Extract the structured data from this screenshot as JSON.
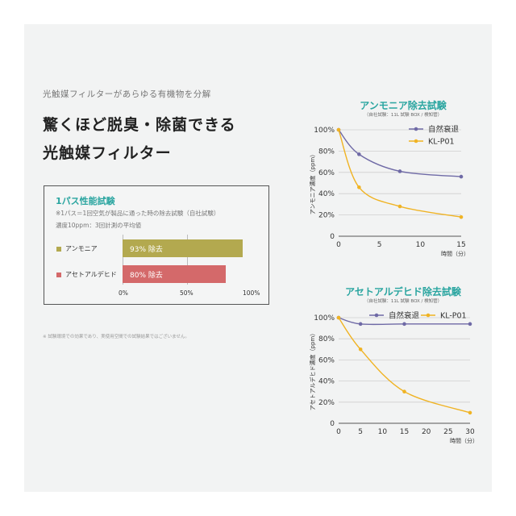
{
  "subtitle": "光触媒フィルターがあらゆる有機物を分解",
  "headline": [
    "驚くほど脱臭・除菌できる",
    "光触媒フィルター"
  ],
  "pass_test": {
    "title": "1パス性能試験",
    "note1": "※1パス＝1回空気が製品に通った時の除去試験（自社試験）",
    "note2": "濃度10ppm：3回計測の平均値",
    "bars": [
      {
        "label": "アンモニア",
        "value": 93,
        "text": "93% 除去",
        "color": "#b3a94f"
      },
      {
        "label": "アセトアルデヒド",
        "value": 80,
        "text": "80% 除去",
        "color": "#d4696a"
      }
    ],
    "ticks": [
      "0%",
      "50%",
      "100%"
    ]
  },
  "footnote": "※ 試験環境での効果であり、実使用空間での試験結果ではございません。",
  "chart_data": [
    {
      "type": "line",
      "title": "アンモニア除去試験",
      "subtitle": "（自社試験：11L 試験 BOX / 検知管）",
      "ylabel": "アンモニア濃度（ppm）",
      "xlabel": "時間（分）",
      "xlim": [
        0,
        15
      ],
      "ylim": [
        0,
        100
      ],
      "xticks": [
        0,
        5,
        10,
        15
      ],
      "yticks": [
        0,
        20,
        40,
        60,
        80,
        100
      ],
      "yticklabels": [
        "0",
        "20%",
        "40%",
        "60%",
        "80%",
        "100%"
      ],
      "legend": "top-right",
      "series": [
        {
          "name": "自然衰退",
          "color": "#6f6aa6",
          "x": [
            0,
            2.5,
            7.5,
            15
          ],
          "y": [
            100,
            77,
            61,
            56
          ]
        },
        {
          "name": "KL-P01",
          "color": "#f0b323",
          "x": [
            0,
            2.5,
            7.5,
            15
          ],
          "y": [
            100,
            46,
            28,
            18
          ]
        }
      ]
    },
    {
      "type": "line",
      "title": "アセトアルデヒド除去試験",
      "subtitle": "（自社試験：11L 試験 BOX / 検知管）",
      "ylabel": "アセトアルデヒド濃度（ppm）",
      "xlabel": "時間（分）",
      "xlim": [
        0,
        30
      ],
      "ylim": [
        0,
        100
      ],
      "xticks": [
        0,
        5,
        10,
        15,
        20,
        25,
        30
      ],
      "yticks": [
        0,
        20,
        40,
        60,
        80,
        100
      ],
      "yticklabels": [
        "0",
        "20%",
        "40%",
        "60%",
        "80%",
        "100%"
      ],
      "legend": "top",
      "series": [
        {
          "name": "自然衰退",
          "color": "#6f6aa6",
          "x": [
            0,
            5,
            15,
            30
          ],
          "y": [
            100,
            94,
            94,
            94
          ]
        },
        {
          "name": "KL-P01",
          "color": "#f0b323",
          "x": [
            0,
            5,
            15,
            30
          ],
          "y": [
            100,
            70,
            30,
            10
          ]
        }
      ]
    }
  ]
}
